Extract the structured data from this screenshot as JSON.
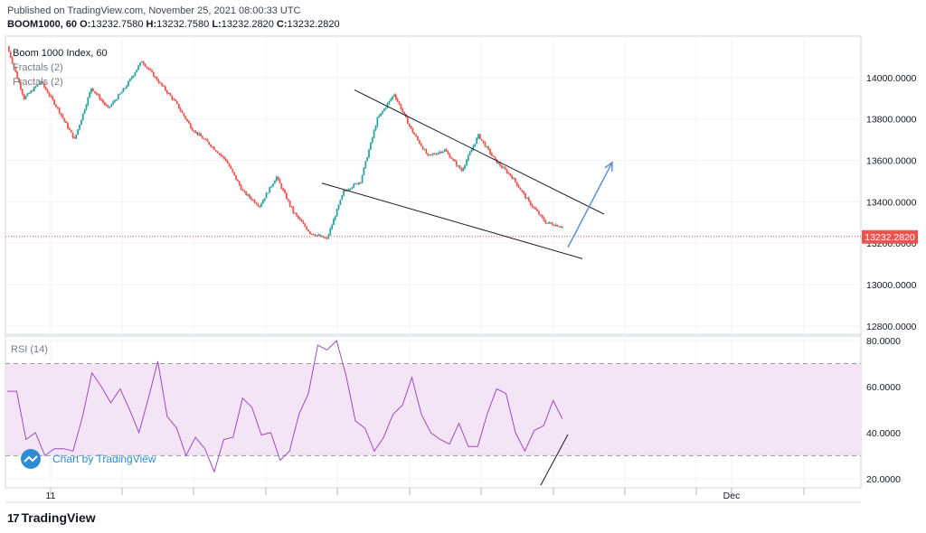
{
  "header": {
    "published": "Published on TradingView.com, November 25, 2021 08:00:33 UTC",
    "symbol": "BOOM1000, 60",
    "o_label": "O:",
    "o": "13232.7580",
    "h_label": "H:",
    "h": "13232.7580",
    "l_label": "L:",
    "l": "13232.2820",
    "c_label": "C:",
    "c": "13232.2820"
  },
  "legend": {
    "title": "Boom 1000 Index, 60",
    "ind1": "Fractals (2)",
    "ind2": "Fractals (2)"
  },
  "rsi_label": "RSI (14)",
  "watermark": "Chart by TradingView",
  "brand": "TradingView",
  "colors": {
    "up": "#26a69a",
    "down": "#ef5350",
    "rsi": "#9c4bc1",
    "band": "#f3e5f5",
    "arrow": "#5b8fd6",
    "price_tag": "#ef5350"
  },
  "chart_data": [
    {
      "type": "line",
      "title": "Boom 1000 Index, 60",
      "price_series_approx": {
        "x_index": [
          0,
          10,
          20,
          30,
          40,
          50,
          60,
          70,
          80,
          90,
          100,
          110,
          120,
          130,
          140,
          150,
          160,
          170,
          180,
          190,
          200,
          210,
          220,
          230,
          240,
          250,
          260,
          270,
          280,
          290,
          300,
          310,
          320,
          330
        ],
        "close": [
          14150,
          13900,
          13980,
          13850,
          13700,
          13950,
          13850,
          13950,
          14080,
          13980,
          13880,
          13750,
          13680,
          13600,
          13450,
          13380,
          13520,
          13350,
          13250,
          13220,
          13450,
          13500,
          13800,
          13920,
          13750,
          13620,
          13650,
          13550,
          13720,
          13600,
          13520,
          13400,
          13300,
          13280
        ]
      },
      "last_price": "13232.2820",
      "y_ticks": [
        "14000.0000",
        "13800.0000",
        "13600.0000",
        "13400.0000",
        "13200.0000",
        "13000.0000",
        "12800.0000"
      ],
      "ylim": [
        12760,
        14200
      ],
      "x_ticks": [
        "11",
        "Dec"
      ],
      "annotations": [
        {
          "type": "channel_upper",
          "from": [
            392,
            13940
          ],
          "to": [
            668,
            13340
          ]
        },
        {
          "type": "channel_lower",
          "from": [
            356,
            13490
          ],
          "to": [
            644,
            13125
          ]
        },
        {
          "type": "arrow",
          "from": [
            628,
            13180
          ],
          "to": [
            677,
            13590
          ]
        }
      ]
    },
    {
      "type": "line",
      "title": "RSI (14)",
      "series": [
        {
          "values": [
            58,
            55,
            40,
            38,
            32,
            33,
            30,
            35,
            45,
            68,
            60,
            50,
            62,
            48,
            42,
            55,
            68,
            50,
            40,
            32,
            38,
            30,
            26,
            35,
            40,
            55,
            48,
            42,
            38,
            30,
            32,
            45,
            60,
            76,
            78,
            80,
            62,
            48,
            40,
            34,
            38,
            45,
            55,
            62,
            50,
            40,
            34,
            38,
            42,
            36,
            34,
            45,
            62,
            55,
            42,
            32,
            38,
            46,
            52,
            48
          ]
        }
      ],
      "ylim": [
        16,
        82
      ],
      "y_ticks": [
        "80.0000",
        "60.0000",
        "40.0000",
        "20.0000"
      ],
      "bands": [
        30,
        70
      ]
    }
  ]
}
